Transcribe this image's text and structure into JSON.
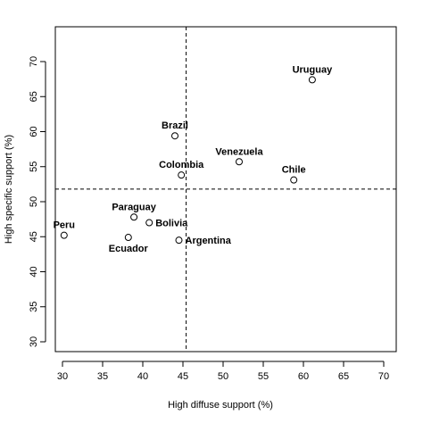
{
  "chart_data": {
    "type": "scatter",
    "xlabel": "High diffuse support (%)",
    "ylabel": "High specific support (%)",
    "xlim": [
      30,
      70
    ],
    "ylim": [
      30,
      70
    ],
    "xticks": [
      "30",
      "35",
      "40",
      "45",
      "50",
      "55",
      "60",
      "65",
      "70"
    ],
    "yticks": [
      "30",
      "35",
      "40",
      "45",
      "50",
      "55",
      "60",
      "65",
      "70"
    ],
    "reference_lines": {
      "x": 45.4,
      "y": 51.8,
      "style": "dashed"
    },
    "points": [
      {
        "label": "Uruguay",
        "x": 61.1,
        "y": 67.4,
        "label_pos": "above"
      },
      {
        "label": "Brazil",
        "x": 44.0,
        "y": 59.4,
        "label_pos": "above"
      },
      {
        "label": "Venezuela",
        "x": 52.0,
        "y": 55.7,
        "label_pos": "above"
      },
      {
        "label": "Colombia",
        "x": 44.8,
        "y": 53.8,
        "label_pos": "above"
      },
      {
        "label": "Chile",
        "x": 58.8,
        "y": 53.1,
        "label_pos": "above"
      },
      {
        "label": "Paraguay",
        "x": 38.9,
        "y": 47.8,
        "label_pos": "above"
      },
      {
        "label": "Bolivia",
        "x": 40.8,
        "y": 47.0,
        "label_pos": "right"
      },
      {
        "label": "Peru",
        "x": 30.2,
        "y": 45.2,
        "label_pos": "above"
      },
      {
        "label": "Ecuador",
        "x": 38.2,
        "y": 44.9,
        "label_pos": "below"
      },
      {
        "label": "Argentina",
        "x": 44.5,
        "y": 44.5,
        "label_pos": "right"
      }
    ]
  }
}
